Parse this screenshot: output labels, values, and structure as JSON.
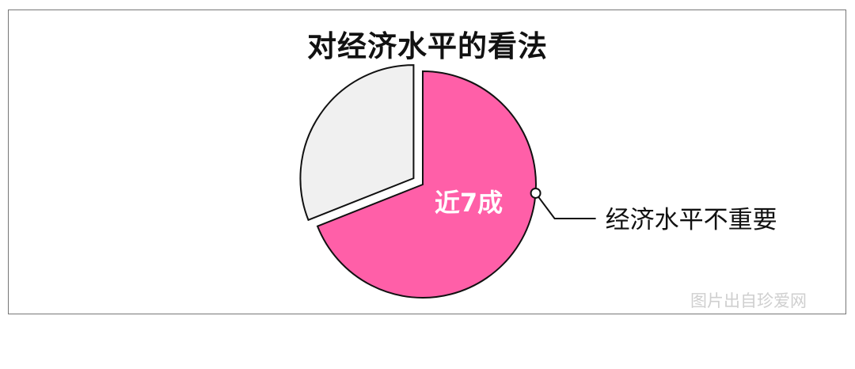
{
  "chart_data": {
    "type": "pie",
    "title": "对经济水平的看法",
    "slices": [
      {
        "label": "经济水平不重要",
        "value": 69,
        "data_label": "近7成",
        "color": "#ff5fa8",
        "exploded": false
      },
      {
        "label": "",
        "value": 31,
        "color": "#f0f0f0",
        "exploded": true
      }
    ],
    "start": "12 o'clock, clockwise",
    "legend": "none"
  },
  "watermark": "图片出自珍爱网"
}
